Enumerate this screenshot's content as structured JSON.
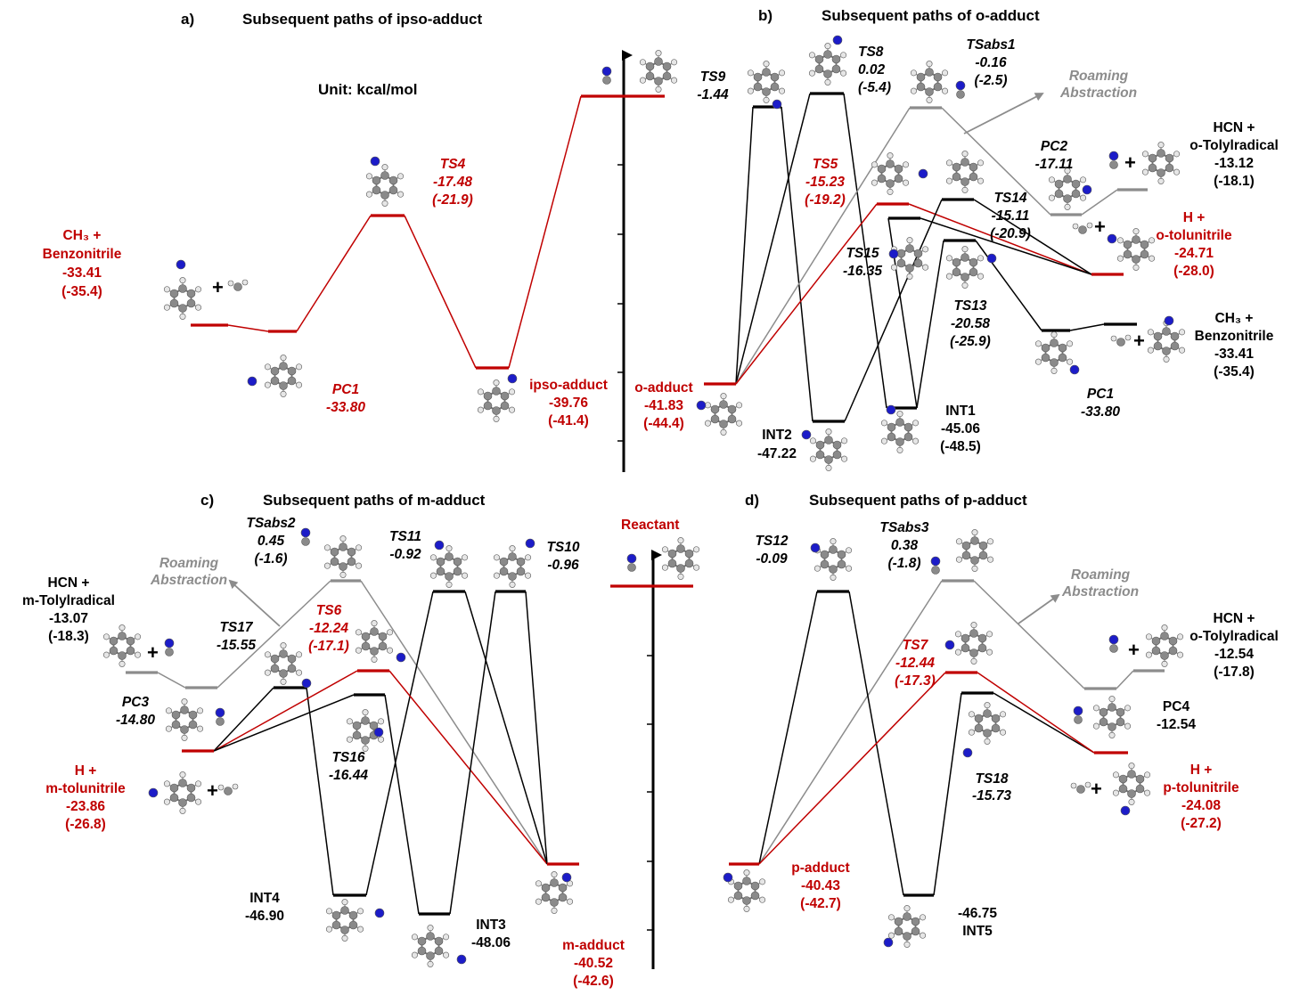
{
  "panels": {
    "a": {
      "letter": "a)",
      "title": "Subsequent paths of ipso-adduct"
    },
    "b": {
      "letter": "b)",
      "title": "Subsequent paths of o-adduct"
    },
    "c": {
      "letter": "c)",
      "title": "Subsequent paths of m-adduct"
    },
    "d": {
      "letter": "d)",
      "title": "Subsequent paths of p-adduct"
    }
  },
  "unit": "Unit: kcal/mol",
  "reactant": "Reactant",
  "roaming": [
    "Roaming",
    "Abstraction"
  ],
  "colors": {
    "main_path": "#c00000",
    "alt_path": "#000000",
    "roaming_path": "#8c8c8c",
    "nitrogen_atom": "#1c1cc8",
    "carbon_atom": "#8a8a8a",
    "hydrogen_atom": "#e6e6e6"
  },
  "labels": {
    "a_ch3": [
      "CH₃ +",
      "Benzonitrile",
      "-33.41",
      "(-35.4)"
    ],
    "a_ts4": [
      "TS4",
      "-17.48",
      "(-21.9)"
    ],
    "a_pc1": [
      "PC1",
      "-33.80"
    ],
    "a_ipso": [
      "ipso-adduct",
      "-39.76",
      "(-41.4)"
    ],
    "b_oadd": [
      "o-adduct",
      "-41.83",
      "(-44.4)"
    ],
    "b_ts9": [
      "TS9",
      "-1.44"
    ],
    "b_ts8": [
      "TS8",
      "0.02",
      "(-5.4)"
    ],
    "b_tsabs1": [
      "TSabs1",
      "-0.16",
      "(-2.5)"
    ],
    "b_ts5": [
      "TS5",
      "-15.23",
      "(-19.2)"
    ],
    "b_ts14": [
      "TS14",
      "-15.11",
      "(-20.9)"
    ],
    "b_ts15": [
      "TS15",
      "-16.35"
    ],
    "b_ts13": [
      "TS13",
      "-20.58",
      "(-25.9)"
    ],
    "b_int2": [
      "INT2",
      "-47.22"
    ],
    "b_int1": [
      "INT1",
      "-45.06",
      "(-48.5)"
    ],
    "b_pc2": [
      "PC2",
      "-17.11"
    ],
    "b_hcn": [
      "HCN +",
      "o-Tolylradical",
      "-13.12",
      "(-18.1)"
    ],
    "b_h": [
      "H +",
      "o-tolunitrile",
      "-24.71",
      "(-28.0)"
    ],
    "b_ch3": [
      "CH₃ +",
      "Benzonitrile",
      "-33.41",
      "(-35.4)"
    ],
    "b_pc1": [
      "PC1",
      "-33.80"
    ],
    "c_hcn": [
      "HCN +",
      "m-Tolylradical",
      "-13.07",
      "(-18.3)"
    ],
    "c_tsabs2": [
      "TSabs2",
      "0.45",
      "(-1.6)"
    ],
    "c_ts11": [
      "TS11",
      "-0.92"
    ],
    "c_ts10": [
      "TS10",
      "-0.96"
    ],
    "c_ts17": [
      "TS17",
      "-15.55"
    ],
    "c_ts6": [
      "TS6",
      "-12.24",
      "(-17.1)"
    ],
    "c_pc3": [
      "PC3",
      "-14.80"
    ],
    "c_ts16": [
      "TS16",
      "-16.44"
    ],
    "c_h": [
      "H +",
      "m-tolunitrile",
      "-23.86",
      "(-26.8)"
    ],
    "c_int4": [
      "INT4",
      "-46.90"
    ],
    "c_int3": [
      "INT3",
      "-48.06"
    ],
    "c_madd": [
      "m-adduct",
      "-40.52",
      "(-42.6)"
    ],
    "d_ts12": [
      "TS12",
      "-0.09"
    ],
    "d_tsabs3": [
      "TSabs3",
      "0.38",
      "(-1.8)"
    ],
    "d_ts7": [
      "TS7",
      "-12.44",
      "(-17.3)"
    ],
    "d_ts18": [
      "TS18",
      "-15.73"
    ],
    "d_hcn": [
      "HCN +",
      "o-Tolylradical",
      "-12.54",
      "(-17.8)"
    ],
    "d_pc4": [
      "PC4",
      "-12.54"
    ],
    "d_h": [
      "H +",
      "p-tolunitrile",
      "-24.08",
      "(-27.2)"
    ],
    "d_padd": [
      "p-adduct",
      "-40.43",
      "(-42.7)"
    ],
    "d_int5": [
      "-46.75",
      "INT5"
    ]
  }
}
